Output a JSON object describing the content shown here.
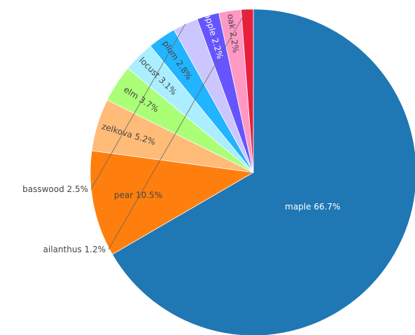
{
  "chart_data": {
    "type": "pie",
    "labels": [
      "maple",
      "pear",
      "zelkova",
      "elm",
      "locust",
      "plum",
      "basswood",
      "apple",
      "oak",
      "ailanthus"
    ],
    "values": [
      66.7,
      10.5,
      5.2,
      3.7,
      3.1,
      2.8,
      2.5,
      2.2,
      2.2,
      1.2
    ],
    "display_labels": [
      "maple 66.7%",
      "pear 10.5%",
      "zelkova 5.2%",
      "elm 3.7%",
      "locust 3.1%",
      "plum 2.8%",
      "basswood 2.5%",
      "apple 2.2%",
      "oak 2.2%",
      "ailanthus 1.2%"
    ],
    "colors": [
      "#1f77b4",
      "#ff7f0e",
      "#ffbb78",
      "#aaff77",
      "#aaeeff",
      "#22b4ff",
      "#ccc6ff",
      "#6655ff",
      "#ff99c4",
      "#e8203c"
    ],
    "direction": "clockwise",
    "start": "top (12 o'clock)",
    "legend": "none",
    "title": ""
  }
}
